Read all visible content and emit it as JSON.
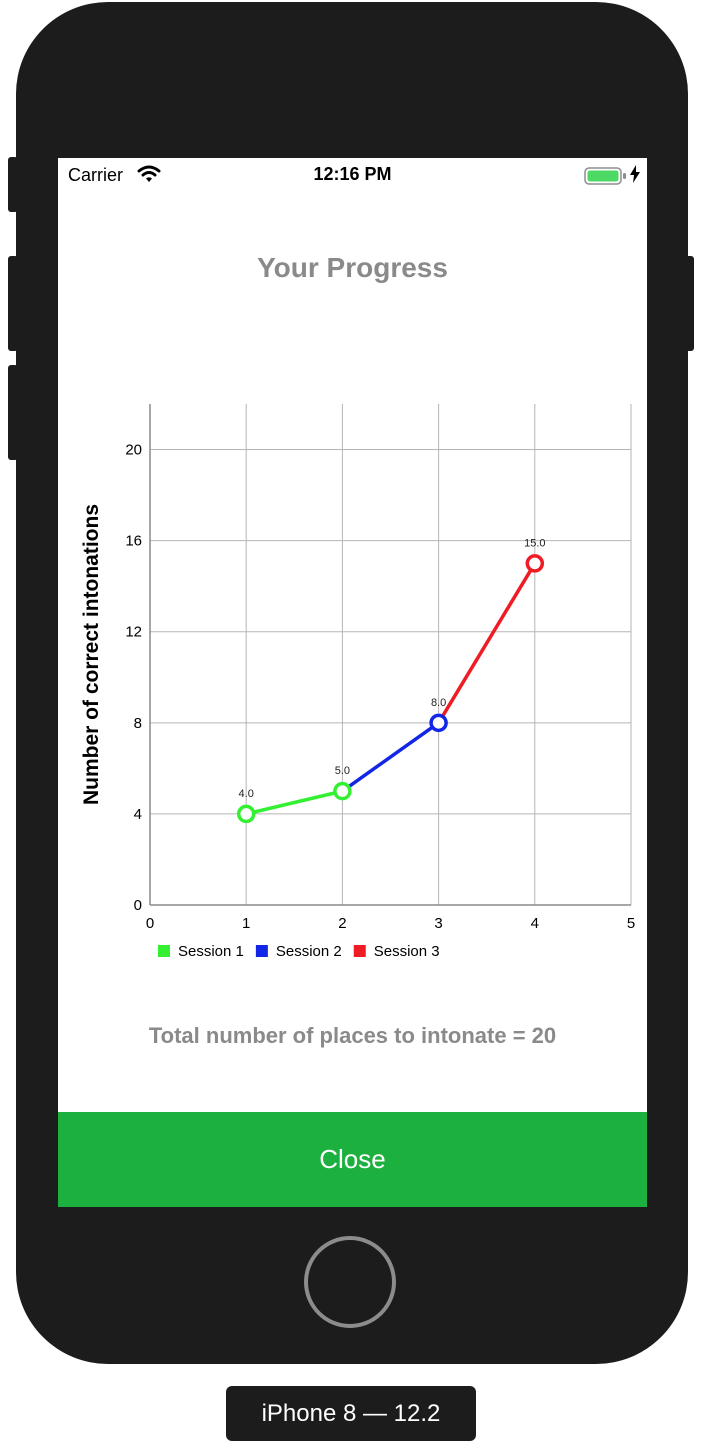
{
  "status_bar": {
    "carrier": "Carrier",
    "time": "12:16 PM"
  },
  "title": "Your Progress",
  "chart_data": {
    "type": "line",
    "ylabel": "Number of correct intonations",
    "xlim": [
      0,
      5
    ],
    "ylim": [
      0,
      22
    ],
    "x_ticks": [
      "0",
      "1",
      "2",
      "3",
      "4",
      "5"
    ],
    "y_ticks": [
      "0",
      "4",
      "8",
      "12",
      "16",
      "20"
    ],
    "grid": true,
    "legend_position": "bottom-left",
    "series": [
      {
        "name": "Session 1",
        "color": "#34f032",
        "points": [
          {
            "x": 1,
            "y": 4,
            "label": "4.0"
          },
          {
            "x": 2,
            "y": 5,
            "label": "5.0"
          }
        ]
      },
      {
        "name": "Session 2",
        "color": "#1227e6",
        "points": [
          {
            "x": 2,
            "y": 5
          },
          {
            "x": 3,
            "y": 8,
            "label": "8.0"
          }
        ]
      },
      {
        "name": "Session 3",
        "color": "#ee1c24",
        "points": [
          {
            "x": 3,
            "y": 8
          },
          {
            "x": 4,
            "y": 15,
            "label": "15.0"
          }
        ]
      }
    ]
  },
  "total_text": "Total number of places to intonate = 20",
  "close_label": "Close",
  "device_label": "iPhone 8 — 12.2"
}
